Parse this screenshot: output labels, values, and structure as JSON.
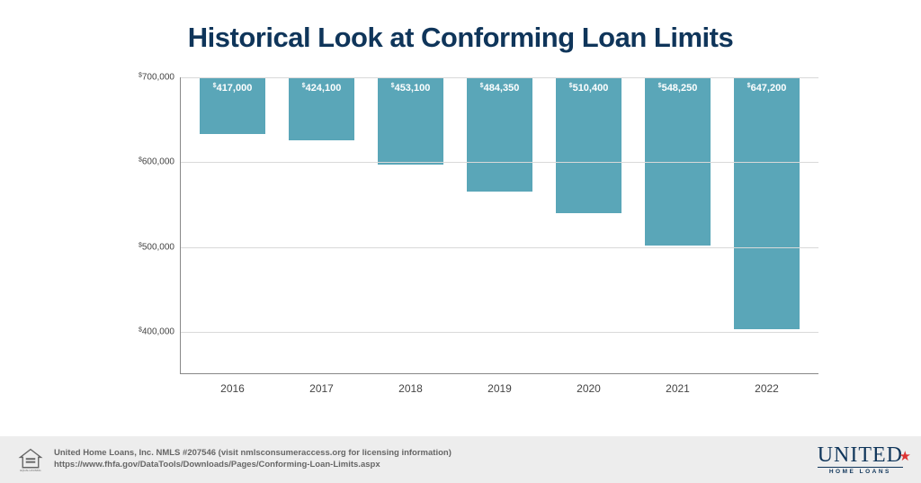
{
  "title": "Historical Look at Conforming Loan Limits",
  "chart": {
    "type": "bar",
    "bar_color": "#5aa6b8",
    "grid_color": "#d9d9d9",
    "axis_color": "#888888",
    "label_color": "#444444",
    "bar_label_color": "#ffffff",
    "bar_width_pct": 74,
    "y_min": 350000,
    "y_max": 700000,
    "y_ticks": [
      400000,
      500000,
      600000,
      700000
    ],
    "y_tick_labels": [
      "400,000",
      "500,000",
      "600,000",
      "700,000"
    ],
    "categories": [
      "2016",
      "2017",
      "2018",
      "2019",
      "2020",
      "2021",
      "2022"
    ],
    "values": [
      417000,
      424100,
      453100,
      484350,
      510400,
      548250,
      647200
    ],
    "value_labels": [
      "417,000",
      "424,100",
      "453,100",
      "484,350",
      "510,400",
      "548,250",
      "647,200"
    ],
    "title_fontsize": 31,
    "title_color": "#0f355a",
    "x_label_fontsize": 12,
    "y_label_fontsize": 10,
    "bar_label_fontsize": 11
  },
  "footer": {
    "line1": "United Home Loans, Inc. NMLS #207546 (visit nmlsconsumeraccess.org for licensing information)",
    "line2": "https://www.fhfa.gov/DataTools/Downloads/Pages/Conforming-Loan-Limits.aspx",
    "background_color": "#ededed",
    "text_color": "#666666"
  },
  "logo": {
    "main": "UNITED",
    "sub": "HOME LOANS",
    "color": "#0f355a",
    "star_color": "#d33333"
  }
}
